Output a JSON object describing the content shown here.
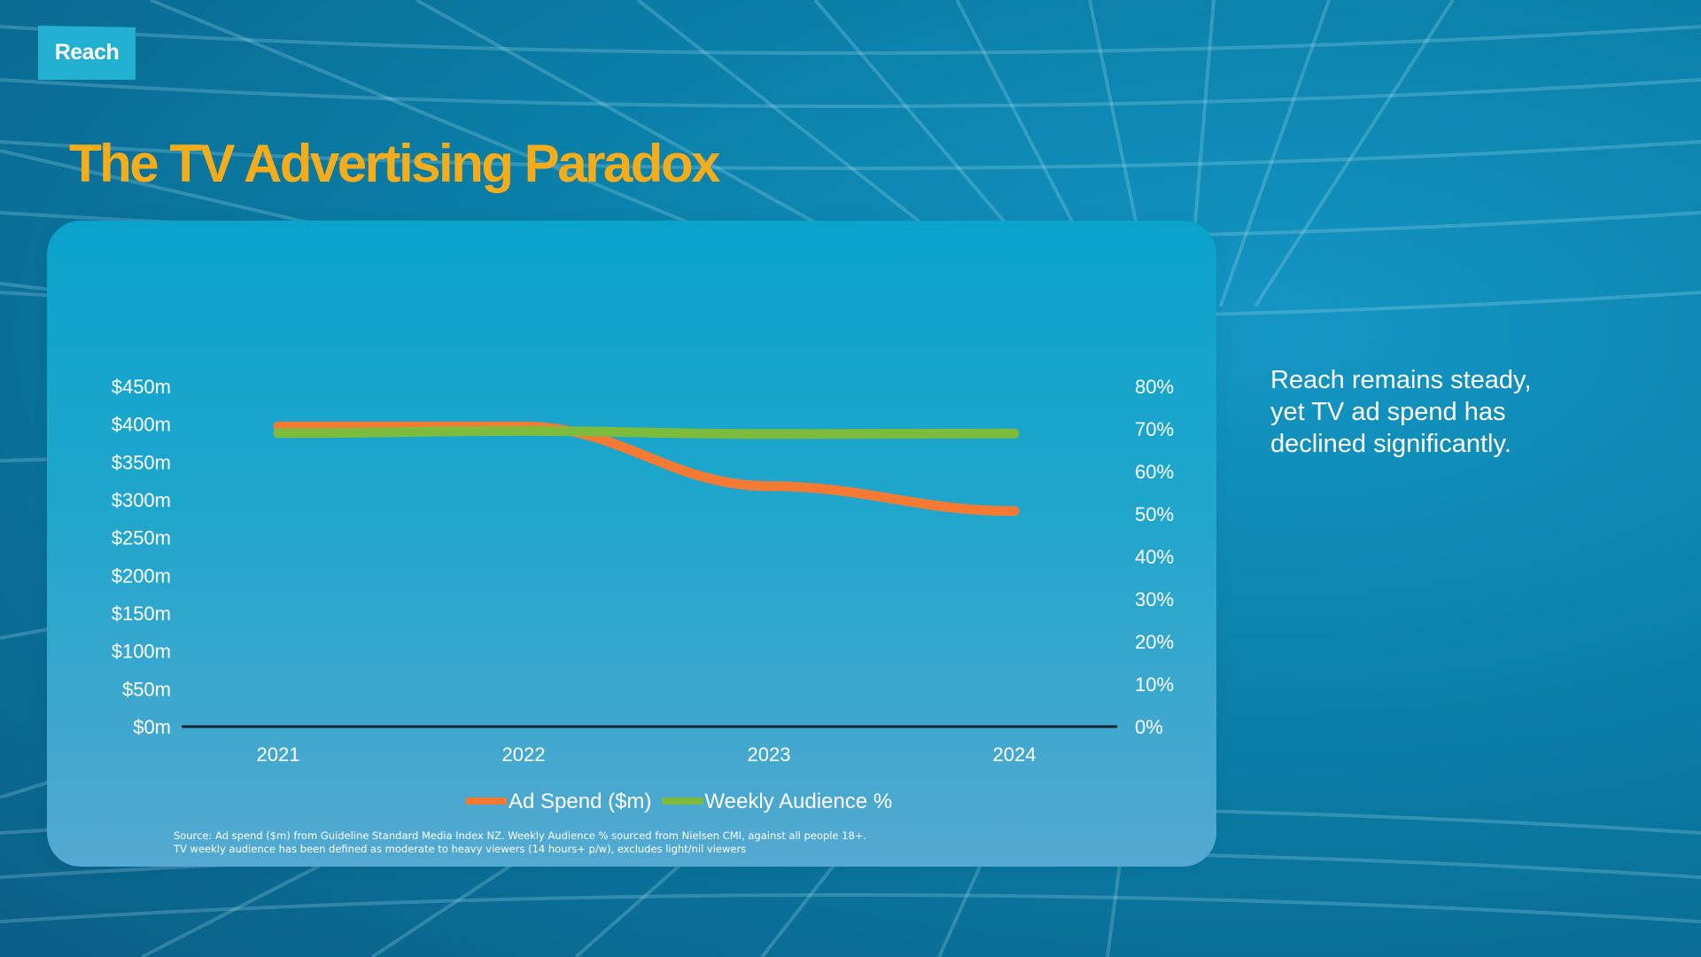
{
  "logo": {
    "text": "Reach"
  },
  "slide": {
    "title": "The TV Advertising Paradox",
    "insight": "Reach remains steady, yet TV ad spend has declined significantly.",
    "source_line1": "Source: Ad spend ($m) from Guideline Standard Media Index NZ. Weekly Audience % sourced from Nielsen CMI, against all people 18+.",
    "source_line2": "TV weekly audience has been defined as moderate to heavy viewers (14 hours+ p/w), excludes light/nil viewers"
  },
  "colors": {
    "title": "#f5ac1a",
    "ad_spend": "#f47a33",
    "weekly_audience": "#7dbb3c",
    "card_top": "#0aa3cc",
    "logo_bg": "#21b0cf"
  },
  "chart_data": {
    "type": "line",
    "x": [
      "2021",
      "2022",
      "2023",
      "2024"
    ],
    "series": [
      {
        "name": "Ad Spend ($m)",
        "axis": "left",
        "values": [
          397,
          397,
          318,
          285
        ],
        "color": "#f47a33"
      },
      {
        "name": "Weekly Audience %",
        "axis": "right",
        "values": [
          69,
          69.5,
          68.8,
          68.9
        ],
        "color": "#7dbb3c"
      }
    ],
    "y_left": {
      "ylim": [
        0,
        450
      ],
      "ticks": [
        "$0m",
        "$50m",
        "$100m",
        "$150m",
        "$200m",
        "$250m",
        "$300m",
        "$350m",
        "$400m",
        "$450m"
      ]
    },
    "y_right": {
      "ylim": [
        0,
        80
      ],
      "ticks": [
        "0%",
        "10%",
        "20%",
        "30%",
        "40%",
        "50%",
        "60%",
        "70%",
        "80%"
      ]
    },
    "grid": false,
    "legend": "bottom"
  }
}
